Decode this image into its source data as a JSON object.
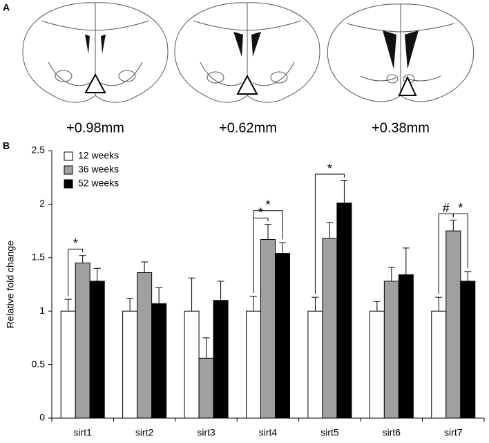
{
  "panel_a": {
    "letter": "A",
    "sections": [
      "+0.98mm",
      "+0.62mm",
      "+0.38mm"
    ]
  },
  "panel_b": {
    "letter": "B"
  },
  "chart_data": {
    "type": "bar",
    "y_label": "Relative fold change",
    "categories": [
      "sirt1",
      "sirt2",
      "sirt3",
      "sirt4",
      "sirt5",
      "sirt6",
      "sirt7"
    ],
    "series": [
      {
        "name": "12 weeks",
        "color": "#ffffff",
        "values": [
          1,
          1,
          1,
          1,
          1,
          1,
          1
        ],
        "errors": [
          0.11,
          0.12,
          0.31,
          0.14,
          0.13,
          0.09,
          0.13
        ]
      },
      {
        "name": "36 weeks",
        "color": "#a0a0a0",
        "values": [
          1.45,
          1.36,
          0.56,
          1.67,
          1.68,
          1.28,
          1.75
        ],
        "errors": [
          0.07,
          0.1,
          0.19,
          0.14,
          0.15,
          0.13,
          0.1
        ]
      },
      {
        "name": "52 weeks",
        "color": "#000000",
        "values": [
          1.28,
          1.07,
          1.1,
          1.54,
          2.01,
          1.34,
          1.28
        ],
        "errors": [
          0.12,
          0.15,
          0.18,
          0.1,
          0.21,
          0.25,
          0.09
        ]
      }
    ],
    "ylim": [
      0,
      2.5
    ],
    "yticks": [
      0,
      0.5,
      1,
      1.5,
      2,
      2.5
    ],
    "grid": false,
    "legend": "top-left",
    "annotations": [
      {
        "text": "*",
        "category": 0,
        "series": [
          0,
          1
        ]
      },
      {
        "text": "*",
        "category": 3,
        "series": [
          0,
          1
        ]
      },
      {
        "text": "*",
        "category": 3,
        "series": [
          0,
          2
        ]
      },
      {
        "text": "*",
        "category": 4,
        "series": [
          0,
          2
        ]
      },
      {
        "text": "#",
        "category": 6,
        "series": [
          0,
          1
        ]
      },
      {
        "text": "*",
        "category": 6,
        "series": [
          1,
          2
        ]
      }
    ]
  }
}
